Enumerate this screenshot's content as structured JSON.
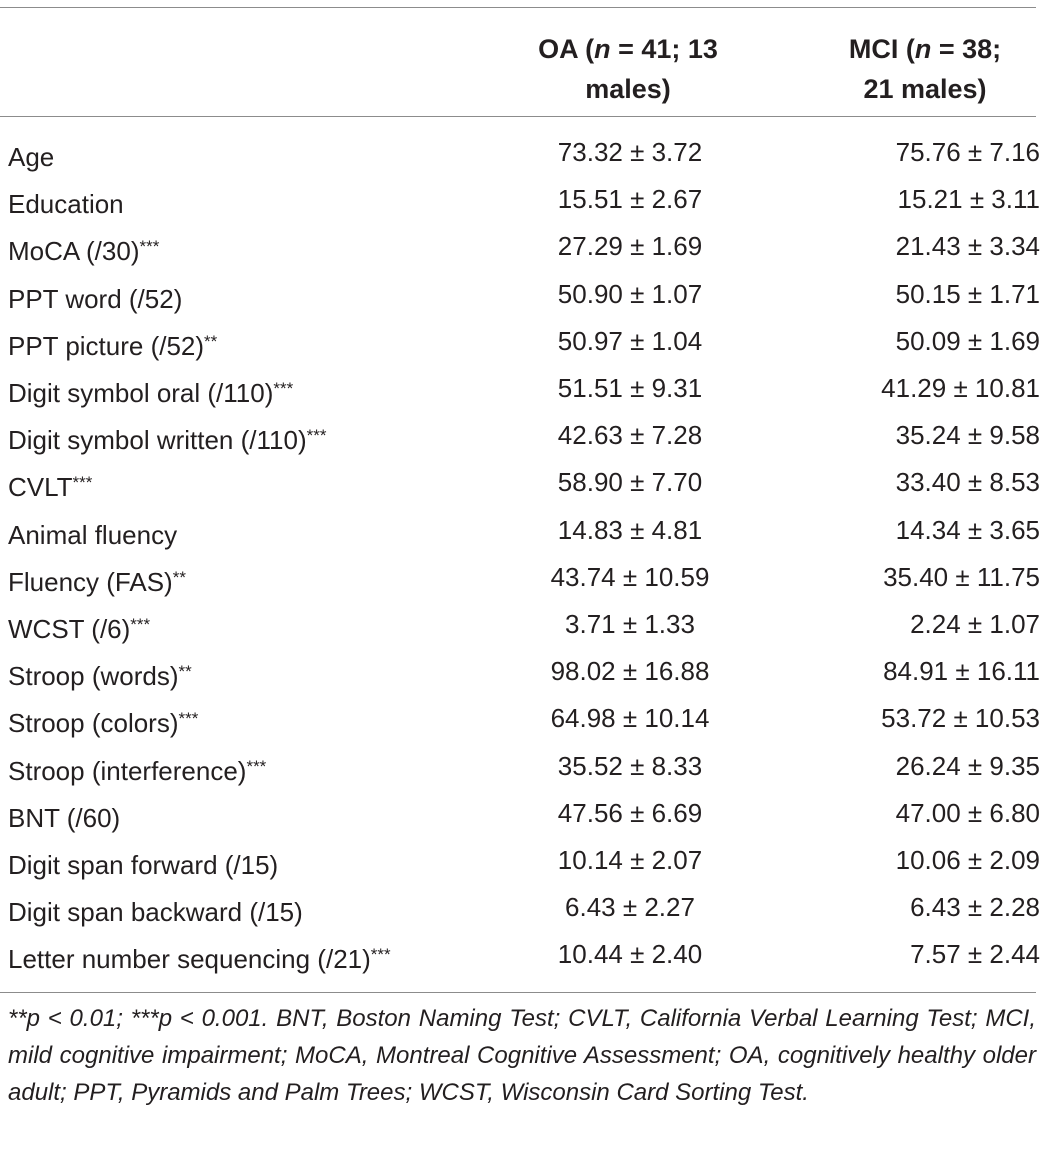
{
  "header": {
    "oa": {
      "prefix": "OA (",
      "n": "n",
      "rest": " = 41; 13",
      "line2": "males)"
    },
    "mci": {
      "prefix": "MCI (",
      "n": "n",
      "rest": " = 38;",
      "line2": "21 males)"
    }
  },
  "rows": [
    {
      "label": "Age",
      "stars": "",
      "oa": "73.32 ± 3.72",
      "mci": "75.76 ± 7.16"
    },
    {
      "label": "Education",
      "stars": "",
      "oa": "15.51 ± 2.67",
      "mci": "15.21 ± 3.11"
    },
    {
      "label": "MoCA (/30)",
      "stars": "***",
      "oa": "27.29 ± 1.69",
      "mci": "21.43 ± 3.34"
    },
    {
      "label": "PPT word (/52)",
      "stars": "",
      "oa": "50.90 ± 1.07",
      "mci": "50.15 ± 1.71"
    },
    {
      "label": "PPT picture (/52)",
      "stars": "**",
      "oa": "50.97 ± 1.04",
      "mci": "50.09 ± 1.69"
    },
    {
      "label": "Digit symbol oral (/110)",
      "stars": "***",
      "oa": "51.51 ± 9.31",
      "mci": "41.29 ± 10.81"
    },
    {
      "label": "Digit symbol written (/110)",
      "stars": "***",
      "oa": "42.63 ± 7.28",
      "mci": "35.24 ± 9.58"
    },
    {
      "label": "CVLT",
      "stars": "***",
      "oa": "58.90 ± 7.70",
      "mci": "33.40 ± 8.53"
    },
    {
      "label": "Animal fluency",
      "stars": "",
      "oa": "14.83 ± 4.81",
      "mci": "14.34 ± 3.65"
    },
    {
      "label": "Fluency (FAS)",
      "stars": "**",
      "oa": "43.74 ± 10.59",
      "mci": "35.40 ± 11.75"
    },
    {
      "label": "WCST (/6)",
      "stars": "***",
      "oa": "3.71 ± 1.33",
      "mci": "2.24 ± 1.07"
    },
    {
      "label": "Stroop (words)",
      "stars": "**",
      "oa": "98.02 ± 16.88",
      "mci": "84.91 ± 16.11"
    },
    {
      "label": "Stroop (colors)",
      "stars": "***",
      "oa": "64.98 ± 10.14",
      "mci": "53.72 ± 10.53"
    },
    {
      "label": "Stroop (interference)",
      "stars": "***",
      "oa": "35.52 ± 8.33",
      "mci": "26.24 ± 9.35"
    },
    {
      "label": "BNT (/60)",
      "stars": "",
      "oa": "47.56 ± 6.69",
      "mci": "47.00 ± 6.80"
    },
    {
      "label": "Digit span forward (/15)",
      "stars": "",
      "oa": "10.14 ± 2.07",
      "mci": "10.06 ± 2.09"
    },
    {
      "label": "Digit span backward (/15)",
      "stars": "",
      "oa": "6.43 ± 2.27",
      "mci": "6.43 ± 2.28"
    },
    {
      "label": "Letter number sequencing (/21)",
      "stars": "***",
      "oa": "10.44 ± 2.40",
      "mci": "7.57 ± 2.44"
    }
  ],
  "footnote": "**p < 0.01; ***p < 0.001. BNT, Boston Naming Test; CVLT, California Verbal Learning Test; MCI, mild cognitive impairment; MoCA, Montreal Cognitive Assessment; OA, cognitively healthy older adult; PPT, Pyramids and Palm Trees; WCST, Wisconsin Card Sorting Test."
}
